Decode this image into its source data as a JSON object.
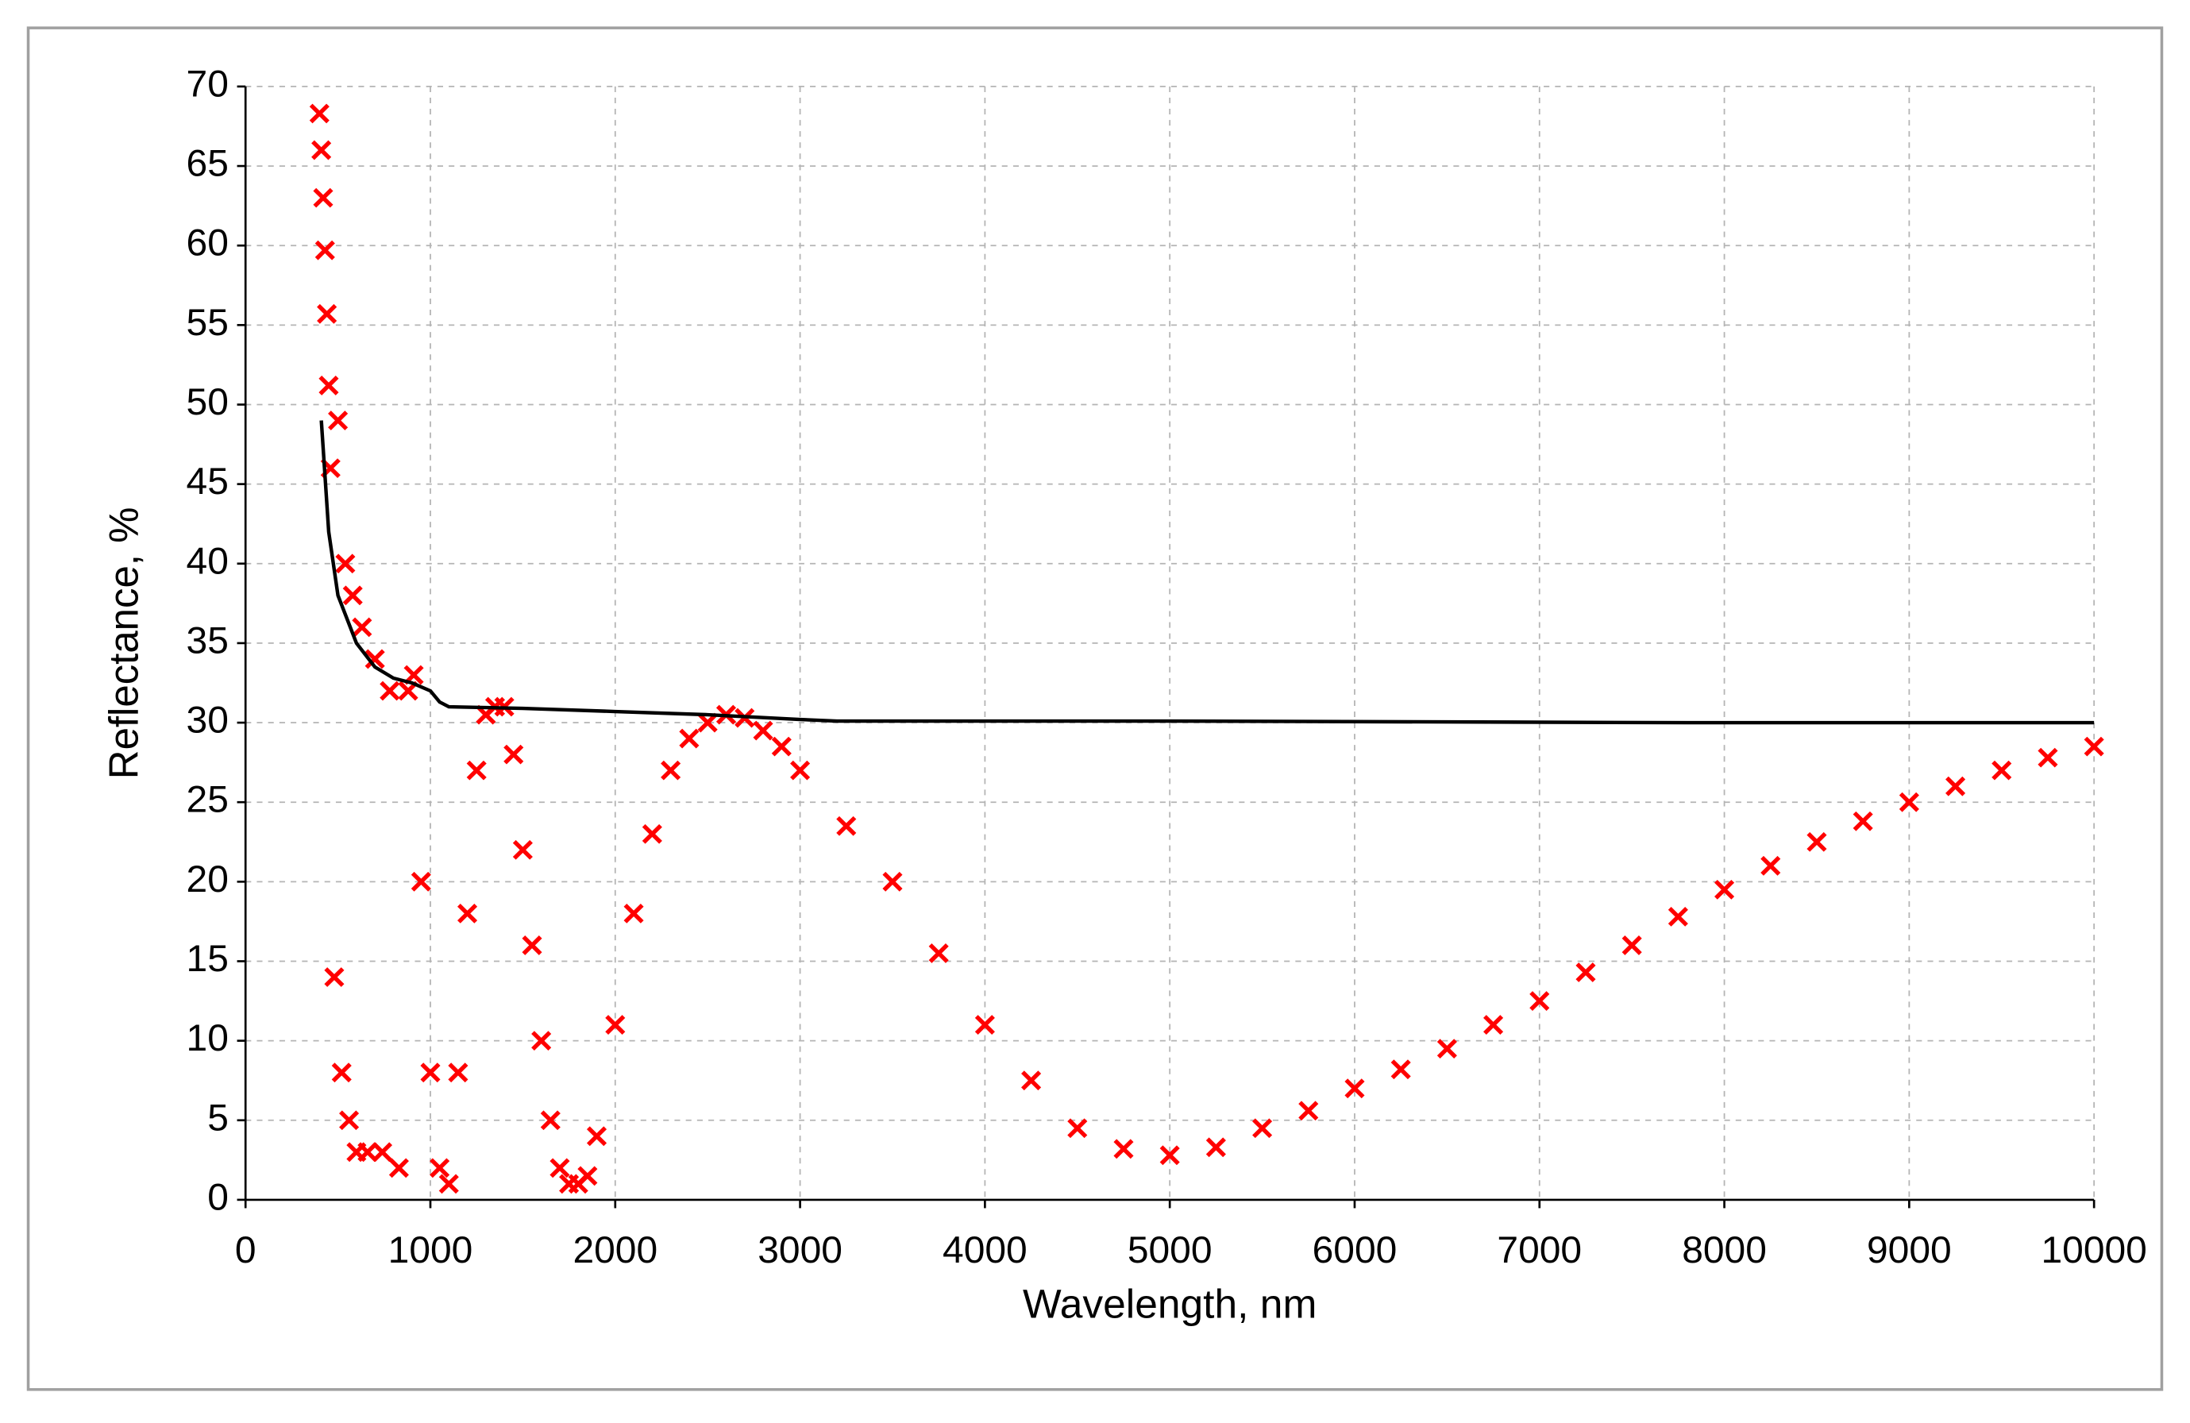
{
  "chart_data": {
    "type": "scatter",
    "x_label": "Wavelength, nm",
    "y_label": "Reflectance, %",
    "xlim": [
      0,
      10000
    ],
    "ylim": [
      0,
      70
    ],
    "xticks": [
      0,
      1000,
      2000,
      3000,
      4000,
      5000,
      6000,
      7000,
      8000,
      9000,
      10000
    ],
    "yticks": [
      0,
      5,
      10,
      15,
      20,
      25,
      30,
      35,
      40,
      45,
      50,
      55,
      60,
      65,
      70
    ],
    "grid": true,
    "series": [
      {
        "type": "scatter",
        "marker": "x",
        "color": "#ff0000",
        "x": [
          400,
          410,
          420,
          430,
          440,
          450,
          460,
          480,
          500,
          520,
          540,
          560,
          580,
          600,
          630,
          660,
          700,
          740,
          780,
          830,
          880,
          910,
          950,
          1000,
          1050,
          1100,
          1150,
          1200,
          1250,
          1300,
          1350,
          1400,
          1450,
          1500,
          1550,
          1600,
          1650,
          1700,
          1750,
          1800,
          1850,
          1900,
          2000,
          2100,
          2200,
          2300,
          2400,
          2500,
          2600,
          2700,
          2800,
          2900,
          3000,
          3250,
          3500,
          3750,
          4000,
          4250,
          4500,
          4750,
          5000,
          5250,
          5500,
          5750,
          6000,
          6250,
          6500,
          6750,
          7000,
          7250,
          7500,
          7750,
          8000,
          8250,
          8500,
          8750,
          9000,
          9250,
          9500,
          9750,
          10000
        ],
        "values": [
          68.3,
          66,
          63,
          59.7,
          55.7,
          51.2,
          46,
          14,
          49,
          8,
          40,
          5,
          38,
          3,
          36,
          3,
          34,
          3,
          32,
          2,
          32,
          33,
          20,
          8,
          2,
          1,
          8,
          18,
          27,
          30.5,
          31,
          31,
          28,
          22,
          16,
          10,
          5,
          2,
          1,
          1,
          1.5,
          4,
          11,
          18,
          23,
          27,
          29,
          30,
          30.5,
          30.3,
          29.5,
          28.5,
          27,
          23.5,
          20,
          15.5,
          11,
          7.5,
          4.5,
          3.2,
          2.8,
          3.3,
          4.5,
          5.6,
          7,
          8.2,
          9.5,
          11,
          12.5,
          14.3,
          16,
          17.8,
          19.5,
          21,
          22.5,
          23.8,
          25,
          26,
          27,
          27.8,
          28.5
        ]
      },
      {
        "type": "line",
        "color": "#000000",
        "x": [
          410,
          450,
          500,
          600,
          700,
          800,
          900,
          1000,
          1050,
          1100,
          1500,
          2000,
          2500,
          3000,
          3200,
          5000,
          7800,
          10000
        ],
        "values": [
          49,
          42,
          38,
          35,
          33.5,
          32.8,
          32.5,
          32,
          31.3,
          31,
          30.9,
          30.7,
          30.5,
          30.2,
          30.1,
          30.1,
          30,
          30
        ]
      }
    ]
  }
}
